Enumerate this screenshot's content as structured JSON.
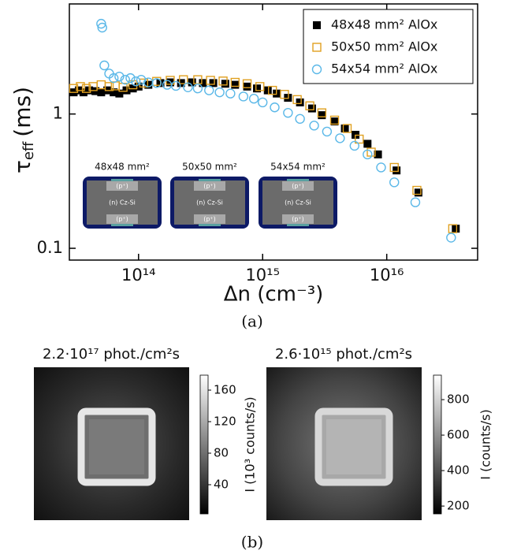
{
  "figure": {
    "panel_a_label": "(a)",
    "panel_b_label": "(b)"
  },
  "chart_data": [
    {
      "type": "scatter",
      "log_x": true,
      "log_y": true,
      "xlabel": "Δn (cm⁻³)",
      "ylabel": {
        "symbol": "τ",
        "subscript": "eff",
        "unit": "(ms)"
      },
      "xlim": [
        27700000000000.0,
        5.4e+16
      ],
      "ylim": [
        0.0817,
        6.6
      ],
      "xticks": [
        {
          "value": 100000000000000.0,
          "label": "10¹⁴"
        },
        {
          "value": 1000000000000000.0,
          "label": "10¹⁵"
        },
        {
          "value": 1e+16,
          "label": "10¹⁶"
        }
      ],
      "yticks": [
        0.1,
        1
      ],
      "legend": "top-right",
      "series": [
        {
          "name": "48x48 mm² AlOx",
          "color": "#000000",
          "marker": "filled-square",
          "x": [
            30000000000000.0,
            33000000000000.0,
            36000000000000.0,
            40000000000000.0,
            45000000000000.0,
            50000000000000.0,
            56000000000000.0,
            63000000000000.0,
            70000000000000.0,
            80000000000000.0,
            90000000000000.0,
            100000000000000.0,
            120000000000000.0,
            150000000000000.0,
            180000000000000.0,
            220000000000000.0,
            270000000000000.0,
            330000000000000.0,
            400000000000000.0,
            500000000000000.0,
            600000000000000.0,
            750000000000000.0,
            900000000000000.0,
            1100000000000000.0,
            1300000000000000.0,
            1600000000000000.0,
            2000000000000000.0,
            2500000000000000.0,
            3000000000000000.0,
            3800000000000000.0,
            4600000000000000.0,
            5600000000000000.0,
            7000000000000000.0,
            8500000000000000.0,
            1.2e+16,
            1.8e+16,
            3.6e+16
          ],
          "values": [
            1.45,
            1.5,
            1.45,
            1.5,
            1.48,
            1.45,
            1.5,
            1.45,
            1.42,
            1.5,
            1.55,
            1.6,
            1.65,
            1.7,
            1.72,
            1.7,
            1.72,
            1.7,
            1.7,
            1.68,
            1.65,
            1.6,
            1.55,
            1.5,
            1.42,
            1.32,
            1.22,
            1.1,
            0.98,
            0.88,
            0.78,
            0.7,
            0.6,
            0.5,
            0.38,
            0.26,
            0.14
          ]
        },
        {
          "name": "50x50 mm² AlOx",
          "color": "#e0a020",
          "marker": "open-square",
          "x": [
            30000000000000.0,
            34000000000000.0,
            38000000000000.0,
            43000000000000.0,
            50000000000000.0,
            58000000000000.0,
            65000000000000.0,
            75000000000000.0,
            90000000000000.0,
            110000000000000.0,
            140000000000000.0,
            180000000000000.0,
            230000000000000.0,
            300000000000000.0,
            380000000000000.0,
            480000000000000.0,
            600000000000000.0,
            750000000000000.0,
            950000000000000.0,
            1200000000000000.0,
            1500000000000000.0,
            1900000000000000.0,
            2400000000000000.0,
            3000000000000000.0,
            3800000000000000.0,
            4800000000000000.0,
            6000000000000000.0,
            7500000000000000.0,
            1.15e+16,
            1.75e+16,
            3.4e+16
          ],
          "values": [
            1.55,
            1.6,
            1.55,
            1.6,
            1.65,
            1.6,
            1.62,
            1.58,
            1.65,
            1.7,
            1.75,
            1.78,
            1.8,
            1.8,
            1.78,
            1.76,
            1.72,
            1.68,
            1.6,
            1.5,
            1.4,
            1.28,
            1.15,
            1.02,
            0.9,
            0.78,
            0.65,
            0.52,
            0.4,
            0.27,
            0.14
          ]
        },
        {
          "name": "54x54 mm² AlOx",
          "color": "#5bb8e8",
          "marker": "open-circle",
          "x": [
            50000000000000.0,
            51000000000000.0,
            53000000000000.0,
            58000000000000.0,
            63000000000000.0,
            70000000000000.0,
            78000000000000.0,
            86000000000000.0,
            95000000000000.0,
            105000000000000.0,
            120000000000000.0,
            140000000000000.0,
            170000000000000.0,
            200000000000000.0,
            250000000000000.0,
            300000000000000.0,
            370000000000000.0,
            450000000000000.0,
            550000000000000.0,
            700000000000000.0,
            850000000000000.0,
            1000000000000000.0,
            1250000000000000.0,
            1600000000000000.0,
            2000000000000000.0,
            2600000000000000.0,
            3300000000000000.0,
            4200000000000000.0,
            5500000000000000.0,
            7000000000000000.0,
            9000000000000000.0,
            1.15e+16,
            1.7e+16,
            3.3e+16
          ],
          "values": [
            4.7,
            4.4,
            2.3,
            2.0,
            1.85,
            1.9,
            1.8,
            1.85,
            1.75,
            1.8,
            1.72,
            1.7,
            1.65,
            1.62,
            1.58,
            1.55,
            1.5,
            1.45,
            1.42,
            1.35,
            1.3,
            1.22,
            1.12,
            1.02,
            0.92,
            0.82,
            0.74,
            0.66,
            0.58,
            0.5,
            0.4,
            0.31,
            0.22,
            0.12
          ]
        }
      ],
      "insets": [
        {
          "title": "48x48 mm²",
          "top": "(p⁺)",
          "middle": "(n) Cz-Si",
          "bottom": "(p⁺)"
        },
        {
          "title": "50x50 mm²",
          "top": "(p⁺)",
          "middle": "(n) Cz-Si",
          "bottom": "(p⁺)"
        },
        {
          "title": "54x54 mm²",
          "top": "(p⁺)",
          "middle": "(n) Cz-Si",
          "bottom": "(p⁺)"
        }
      ]
    },
    {
      "type": "heatmap",
      "title": "2.2·10¹⁷ phot./cm²s",
      "colorbar_label": "I (10³ counts/s)",
      "zlim": [
        3,
        179
      ],
      "zticks": [
        40,
        80,
        120,
        160
      ]
    },
    {
      "type": "heatmap",
      "title": "2.6·10¹⁵ phot./cm²s",
      "colorbar_label": "I (counts/s)",
      "zlim": [
        156,
        938
      ],
      "zticks": [
        200,
        400,
        600,
        800
      ]
    }
  ]
}
